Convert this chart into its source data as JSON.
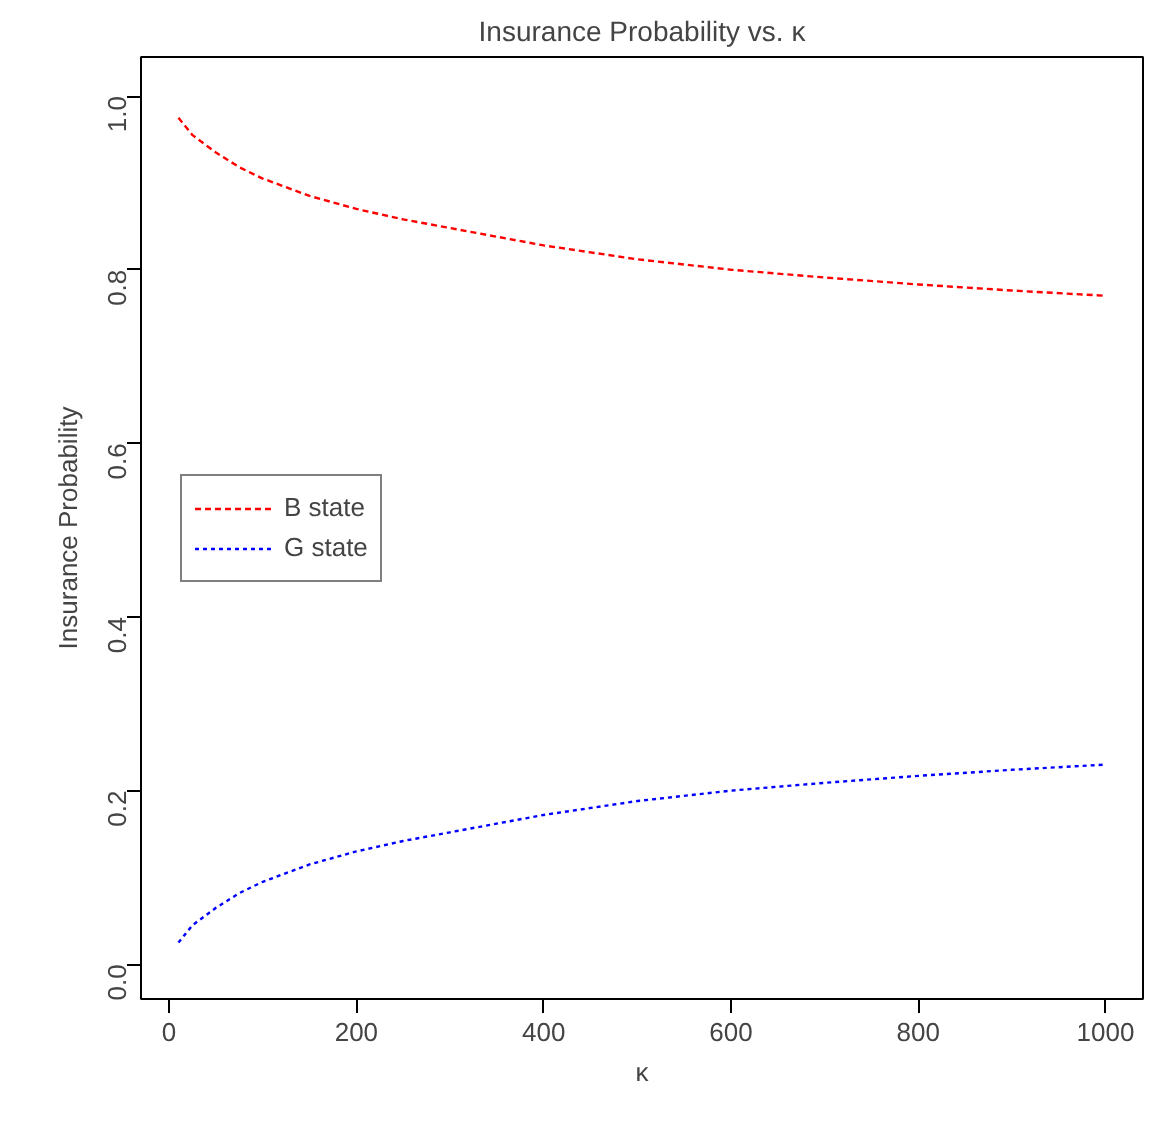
{
  "chart_data": {
    "type": "line",
    "title": "Insurance Probability vs. κ",
    "xlabel": "κ",
    "ylabel": "Insurance Probability",
    "x": [
      10,
      25,
      50,
      75,
      100,
      150,
      200,
      250,
      300,
      400,
      500,
      600,
      700,
      800,
      900,
      1000
    ],
    "series": [
      {
        "name": "B state",
        "color": "#ff0000",
        "line_style": "dashed",
        "values": [
          0.975,
          0.955,
          0.935,
          0.918,
          0.905,
          0.885,
          0.87,
          0.858,
          0.848,
          0.828,
          0.812,
          0.8,
          0.791,
          0.783,
          0.776,
          0.77
        ]
      },
      {
        "name": "G state",
        "color": "#0000ff",
        "line_style": "dotted",
        "values": [
          0.025,
          0.045,
          0.065,
          0.082,
          0.095,
          0.115,
          0.13,
          0.142,
          0.152,
          0.172,
          0.188,
          0.2,
          0.209,
          0.217,
          0.224,
          0.23
        ]
      }
    ],
    "xlim": [
      -30,
      1040
    ],
    "ylim": [
      -0.04,
      1.045
    ],
    "xticks": [
      0,
      200,
      400,
      600,
      800,
      1000
    ],
    "yticks": [
      {
        "value": 0,
        "label": "0.0"
      },
      {
        "value": 0.2,
        "label": "0.2"
      },
      {
        "value": 0.4,
        "label": "0.4"
      },
      {
        "value": 0.6,
        "label": "0.6"
      },
      {
        "value": 0.8,
        "label": "0.8"
      },
      {
        "value": 1,
        "label": "1.0"
      }
    ],
    "grid": false,
    "legend": "left",
    "marker": "none"
  }
}
